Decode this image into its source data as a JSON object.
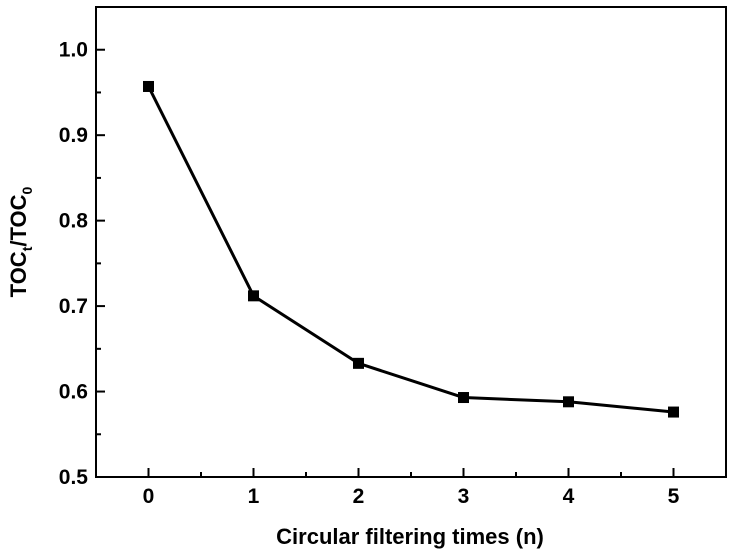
{
  "chart_data": {
    "type": "line",
    "title": "",
    "xlabel": "Circular filtering times (n)",
    "ylabel": {
      "base1": "TOC",
      "sub1": "t",
      "slash": "/",
      "base2": "TOC",
      "sub2": "0"
    },
    "x": [
      0,
      1,
      2,
      3,
      4,
      5
    ],
    "series": [
      {
        "values": [
          0.957,
          0.712,
          0.633,
          0.593,
          0.588,
          0.576
        ]
      }
    ],
    "xlim": [
      -0.5,
      5.5
    ],
    "ylim": [
      0.5,
      1.05
    ],
    "xticks": [
      "0",
      "1",
      "2",
      "3",
      "4",
      "5"
    ],
    "yticks": [
      "0.5",
      "0.6",
      "0.7",
      "0.8",
      "0.9",
      "1.0"
    ],
    "grid": false,
    "marker": "square",
    "line_color": "#000000"
  }
}
